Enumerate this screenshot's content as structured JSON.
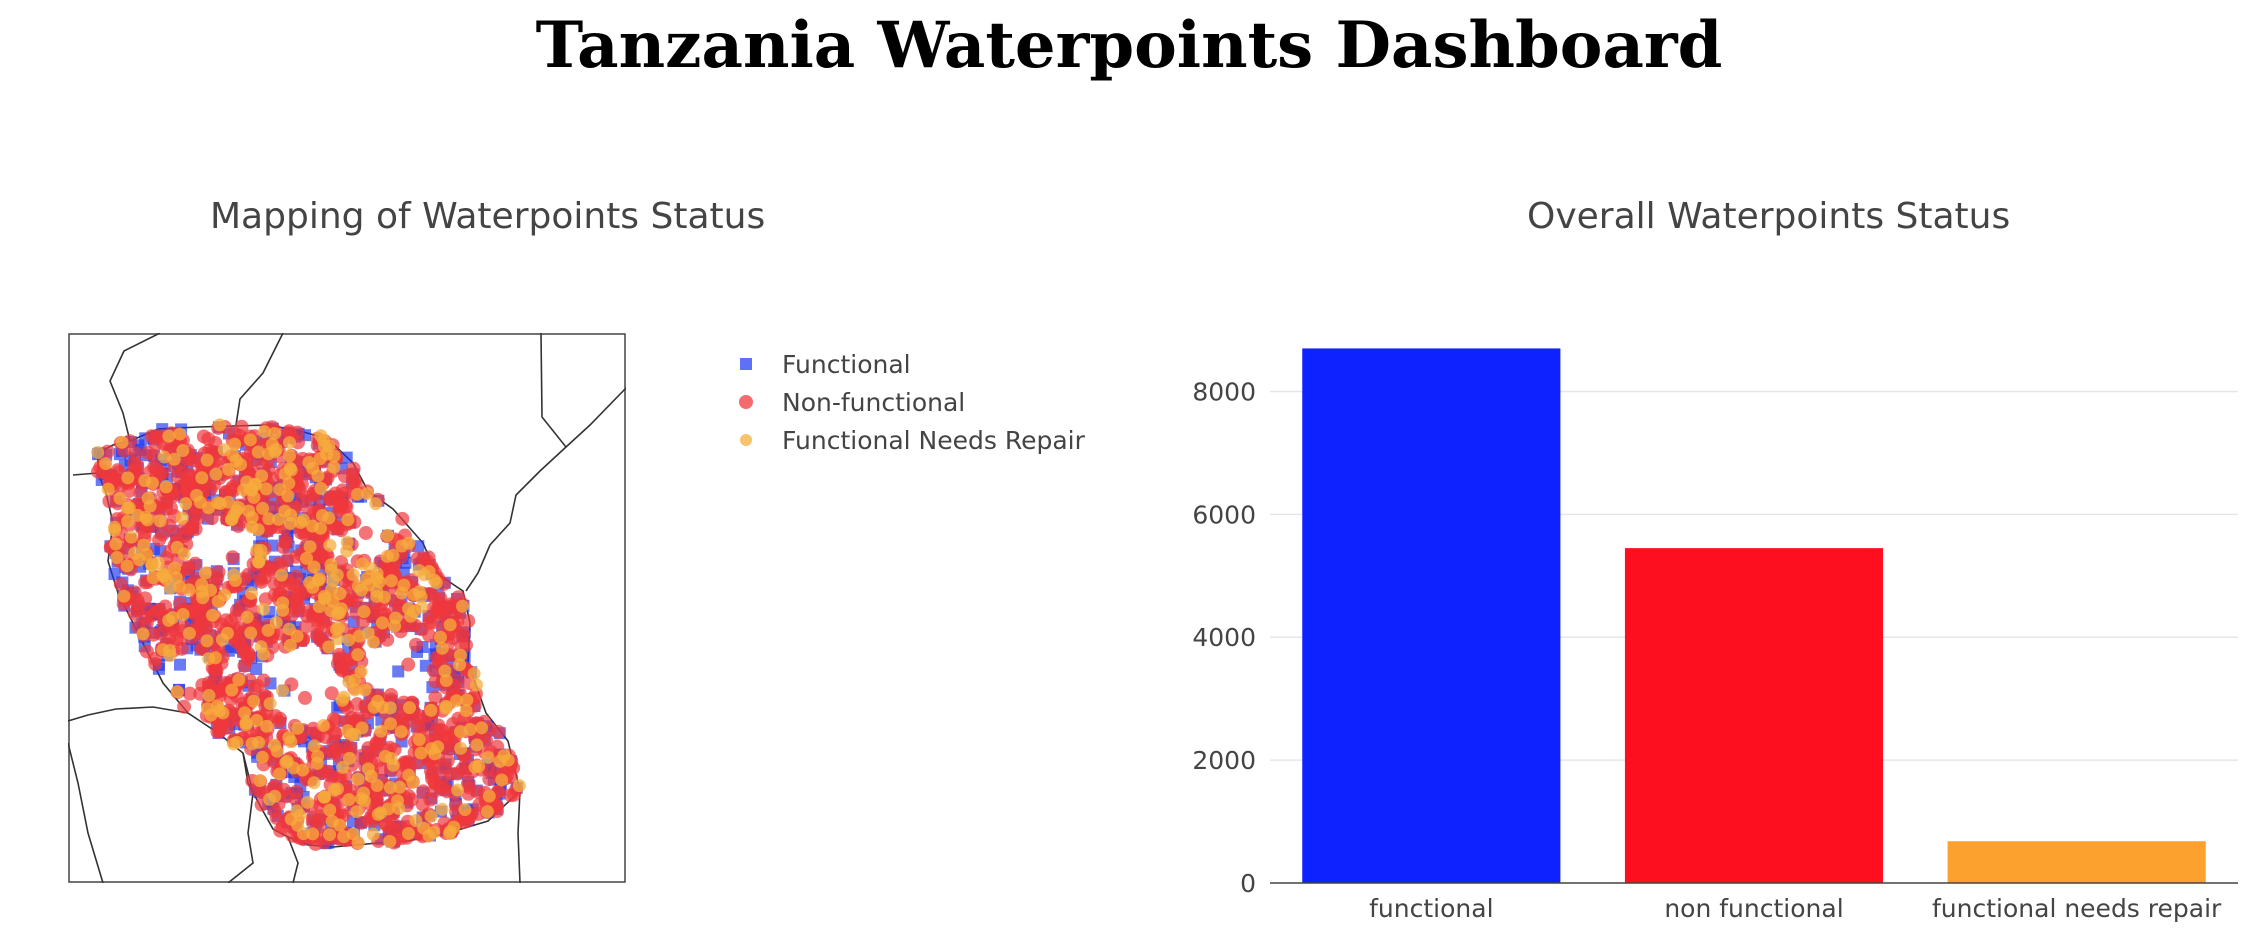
{
  "page": {
    "title": "Tanzania Waterpoints Dashboard"
  },
  "map": {
    "title": "Mapping of Waterpoints Status",
    "legend": [
      {
        "label": "Functional",
        "color": "#1a33ee",
        "marker": "square"
      },
      {
        "label": "Non-functional",
        "color": "#f0383c",
        "marker": "circle"
      },
      {
        "label": "Functional Needs Repair",
        "color": "#f5ac3c",
        "marker": "circle"
      }
    ]
  },
  "chart_data": {
    "type": "bar",
    "title": "Overall Waterpoints Status",
    "categories": [
      "functional",
      "non functional",
      "functional needs repair"
    ],
    "values": [
      8700,
      5450,
      680
    ],
    "colors": [
      "#0d22ff",
      "#fd0f1f",
      "#fca12e"
    ],
    "ylim": [
      0,
      9000
    ],
    "yticks": [
      0,
      2000,
      4000,
      6000,
      8000
    ],
    "xlabel": "",
    "ylabel": "",
    "grid": true
  }
}
